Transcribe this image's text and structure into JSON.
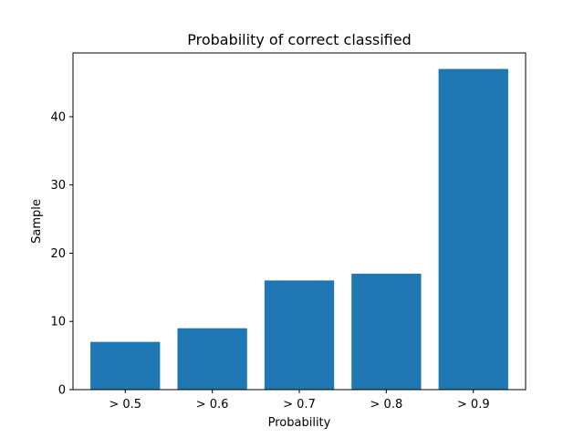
{
  "chart_data": {
    "type": "bar",
    "title": "Probability of correct classified",
    "xlabel": "Probability",
    "ylabel": "Sample",
    "categories": [
      "> 0.5",
      "> 0.6",
      "> 0.7",
      "> 0.8",
      "> 0.9"
    ],
    "values": [
      7,
      9,
      16,
      17,
      47
    ],
    "ylim": [
      0,
      49.35
    ],
    "yticks": [
      0,
      10,
      20,
      30,
      40
    ],
    "grid": false,
    "bar_color": "#1f77b4"
  }
}
